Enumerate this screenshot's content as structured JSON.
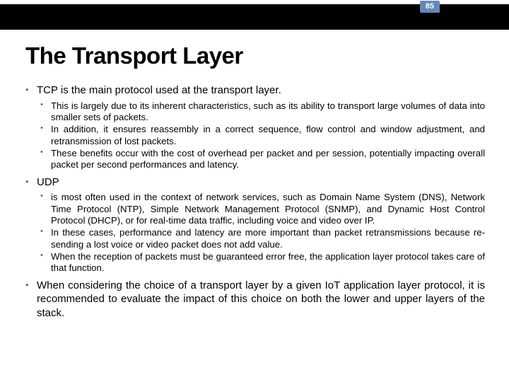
{
  "page_number": "85",
  "title": "The Transport Layer",
  "colors": {
    "header_bar": "#000000",
    "page_badge_bg": "#6289b5",
    "page_badge_text": "#ffffff",
    "bullet_color": "#6b6b6b",
    "text_color": "#000000",
    "background": "#ffffff"
  },
  "typography": {
    "title_fontsize": 33,
    "level1_fontsize": 15,
    "level2_fontsize": 13.2,
    "font_family": "Arial"
  },
  "bullets": {
    "b1": "TCP is the main protocol used at the transport layer.",
    "b1_1": "This is largely due to its inherent characteristics, such as its ability to transport large volumes of data into smaller sets of packets.",
    "b1_2": "In addition, it ensures reassembly in a correct sequence, flow control and window adjustment, and retransmission of lost packets.",
    "b1_3": "These benefits occur with the cost of overhead per packet and per session, potentially impacting overall packet per second performances and latency.",
    "b2": "UDP",
    "b2_1": "is most often used in the context of network services, such as Domain Name System (DNS), Network Time Protocol (NTP), Simple Network Management Protocol (SNMP), and Dynamic Host Control Protocol (DHCP), or for real-time data traffic, including voice and video over IP.",
    "b2_2": "In these cases, performance and latency are more important than packet retransmissions because re-sending a lost voice or video packet does not add value.",
    "b2_3": "When the reception of packets must be guaranteed error free, the application layer protocol takes care of that function.",
    "b3": "When considering the choice of a transport layer by a given IoT application layer protocol, it is recommended to evaluate the impact of this choice on both the lower and upper layers of the stack."
  }
}
